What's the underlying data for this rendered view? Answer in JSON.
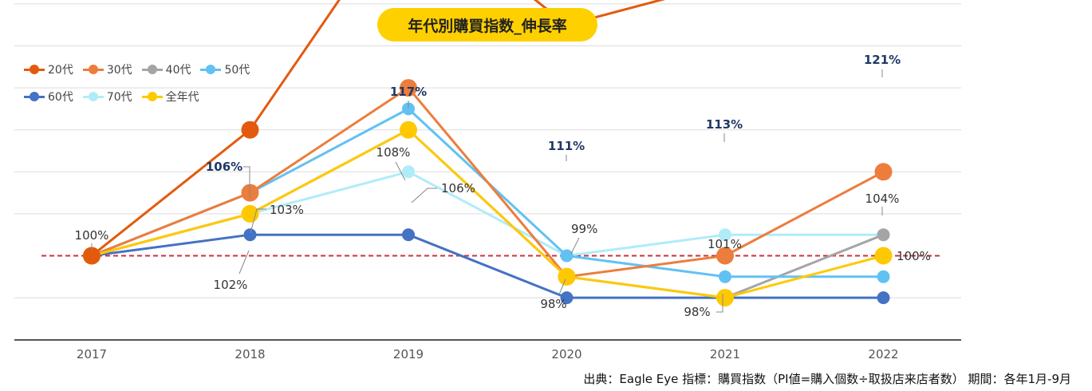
{
  "title": "年代別購買指数_伸長率",
  "source_note": "出典：Eagle Eye  指標：購買指数（PI値=購入個数÷取扱店来店者数）  期間：各年1月-9月",
  "legend": [
    {
      "label": "20代",
      "color": "#e35a0e"
    },
    {
      "label": "30代",
      "color": "#ec7d3c"
    },
    {
      "label": "40代",
      "color": "#a5a5a5"
    },
    {
      "label": "50代",
      "color": "#62c1f3"
    },
    {
      "label": "60代",
      "color": "#4472c4"
    },
    {
      "label": "70代",
      "color": "#b0ecf8"
    },
    {
      "label": "全年代",
      "color": "#ffc902"
    }
  ],
  "chart_data": {
    "type": "line",
    "title": "年代別購買指数_伸長率",
    "categories": [
      "2017",
      "2018",
      "2019",
      "2020",
      "2021",
      "2022"
    ],
    "ylim": [
      92,
      122
    ],
    "yunit": "%",
    "baseline": 100,
    "grid": true,
    "series": [
      {
        "name": "20代",
        "values": [
          100,
          106,
          117,
          111,
          113,
          121
        ]
      },
      {
        "name": "30代",
        "values": [
          100,
          103,
          108,
          99,
          100,
          104
        ]
      },
      {
        "name": "40代",
        "values": [
          100,
          102,
          106,
          99,
          98,
          101
        ]
      },
      {
        "name": "50代",
        "values": [
          100,
          103,
          107,
          100,
          99,
          99
        ]
      },
      {
        "name": "60代",
        "values": [
          100,
          101,
          101,
          98,
          98,
          98
        ]
      },
      {
        "name": "70代",
        "values": [
          100,
          102,
          104,
          100,
          101,
          101
        ]
      },
      {
        "name": "全年代",
        "values": [
          100,
          102,
          106,
          99,
          98,
          100
        ]
      }
    ],
    "data_labels": [
      {
        "text": "100%",
        "category": "2017"
      },
      {
        "text": "106%",
        "category": "2018"
      },
      {
        "text": "103%",
        "category": "2018"
      },
      {
        "text": "102%",
        "category": "2018"
      },
      {
        "text": "117%",
        "category": "2019"
      },
      {
        "text": "108%",
        "category": "2019"
      },
      {
        "text": "106%",
        "category": "2019"
      },
      {
        "text": "111%",
        "category": "2020"
      },
      {
        "text": "99%",
        "category": "2020"
      },
      {
        "text": "98%",
        "category": "2020"
      },
      {
        "text": "113%",
        "category": "2021"
      },
      {
        "text": "101%",
        "category": "2021"
      },
      {
        "text": "98%",
        "category": "2021"
      },
      {
        "text": "121%",
        "category": "2022"
      },
      {
        "text": "104%",
        "category": "2022"
      },
      {
        "text": "100%",
        "category": "2022"
      }
    ]
  }
}
